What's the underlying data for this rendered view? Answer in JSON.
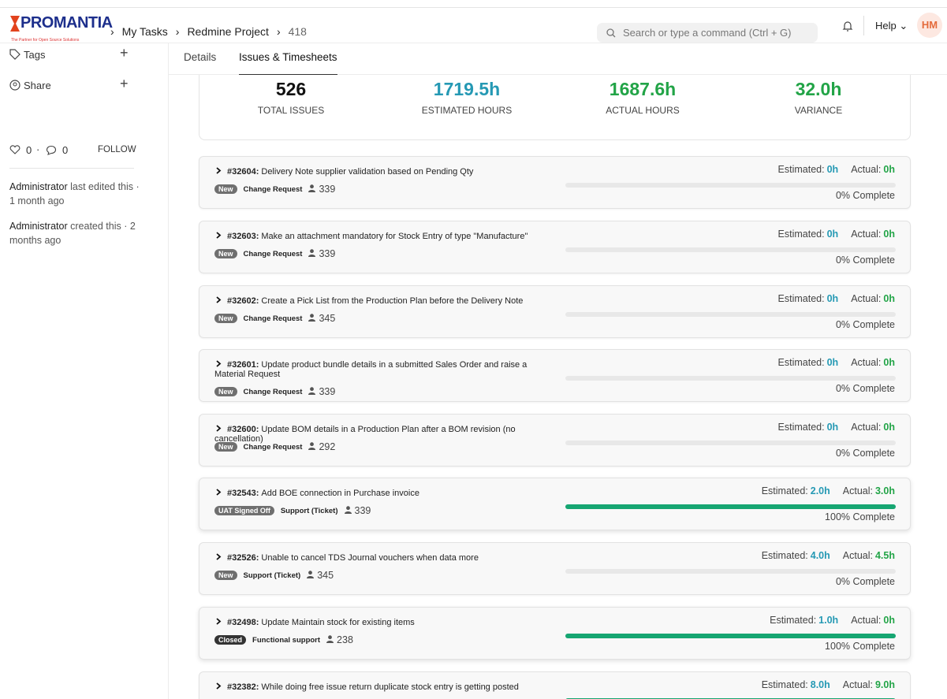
{
  "header": {
    "logo": "PROMANTIA",
    "tagline": "The Partner for Open Source Solutions",
    "breadcrumbs": [
      "My Tasks",
      "Redmine Project",
      "418"
    ],
    "search_placeholder": "Search or type a command (Ctrl + G)",
    "help": "Help",
    "avatar": "HM"
  },
  "sidebar": {
    "tags": "Tags",
    "share": "Share",
    "likes": "0",
    "comments": "0",
    "follow": "FOLLOW",
    "activity": [
      {
        "user": "Administrator",
        "text": "last edited this · 1 month ago"
      },
      {
        "user": "Administrator",
        "text": "created this · 2 months ago"
      }
    ]
  },
  "tabs": [
    "Details",
    "Issues & Timesheets"
  ],
  "stats": [
    {
      "value": "526",
      "label": "TOTAL ISSUES"
    },
    {
      "value": "1719.5h",
      "label": "ESTIMATED HOURS"
    },
    {
      "value": "1687.6h",
      "label": "ACTUAL HOURS"
    },
    {
      "value": "32.0h",
      "label": "VARIANCE"
    }
  ],
  "labels": {
    "estimated": "Estimated:",
    "actual": "Actual:"
  },
  "issues": [
    {
      "id": "#32604:",
      "title": "Delivery Note supplier validation based on Pending Qty",
      "status": "New",
      "type": "Change Request",
      "count": "339",
      "estimated": "0h",
      "actual": "0h",
      "progress": 0,
      "progress_label": "0% Complete"
    },
    {
      "id": "#32603:",
      "title": "Make an attachment mandatory for Stock Entry of type \"Manufacture\"",
      "status": "New",
      "type": "Change Request",
      "count": "339",
      "estimated": "0h",
      "actual": "0h",
      "progress": 0,
      "progress_label": "0% Complete"
    },
    {
      "id": "#32602:",
      "title": "Create a Pick List from the Production Plan before the Delivery Note",
      "status": "New",
      "type": "Change Request",
      "count": "345",
      "estimated": "0h",
      "actual": "0h",
      "progress": 0,
      "progress_label": "0% Complete"
    },
    {
      "id": "#32601:",
      "title": "Update product bundle details in a submitted Sales Order and raise a Material Request",
      "status": "New",
      "type": "Change Request",
      "count": "339",
      "estimated": "0h",
      "actual": "0h",
      "progress": 0,
      "progress_label": "0% Complete"
    },
    {
      "id": "#32600:",
      "title": "Update BOM details in a Production Plan after a BOM revision (no cancellation)",
      "status": "New",
      "type": "Change Request",
      "count": "292",
      "estimated": "0h",
      "actual": "0h",
      "progress": 0,
      "progress_label": "0% Complete"
    },
    {
      "id": "#32543:",
      "title": "Add BOE connection in Purchase invoice",
      "status": "UAT Signed Off",
      "type": "Support (Ticket)",
      "count": "339",
      "estimated": "2.0h",
      "actual": "3.0h",
      "progress": 100,
      "progress_label": "100% Complete"
    },
    {
      "id": "#32526:",
      "title": "Unable to cancel TDS Journal vouchers when data more",
      "status": "New",
      "type": "Support (Ticket)",
      "count": "345",
      "estimated": "4.0h",
      "actual": "4.5h",
      "progress": 0,
      "progress_label": "0% Complete"
    },
    {
      "id": "#32498:",
      "title": "Update Maintain stock for existing items",
      "status": "Closed",
      "type": "Functional support",
      "count": "238",
      "estimated": "1.0h",
      "actual": "0h",
      "progress": 100,
      "progress_label": "100% Complete"
    },
    {
      "id": "#32382:",
      "title": "While doing free issue return duplicate stock entry is getting posted",
      "estimated": "8.0h",
      "actual": "9.0h",
      "progress": 100
    }
  ]
}
